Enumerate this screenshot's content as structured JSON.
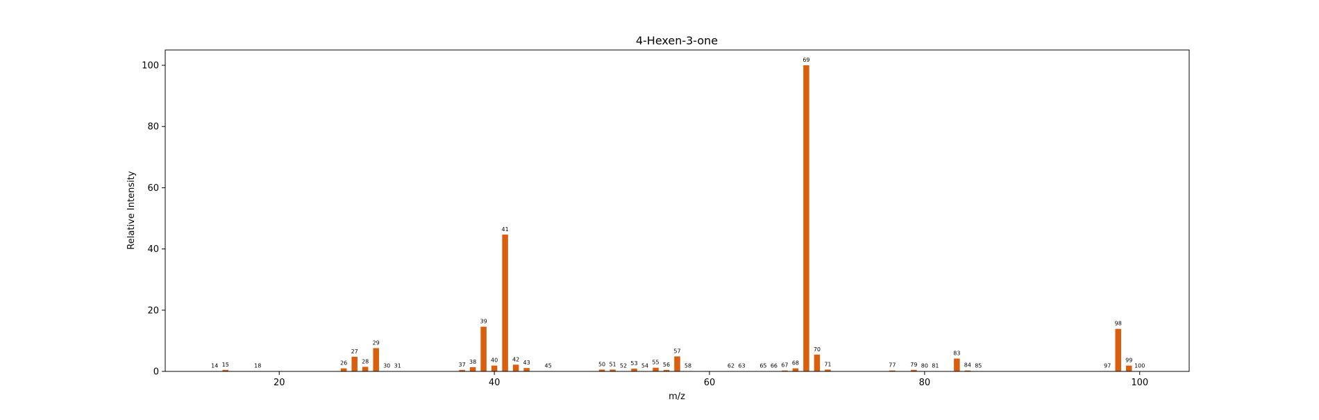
{
  "chart_data": {
    "type": "bar",
    "title": "4-Hexen-3-one",
    "xlabel": "m/z",
    "ylabel": "Relative Intensity",
    "xlim": [
      9.4,
      104.6
    ],
    "ylim": [
      0,
      105
    ],
    "xticks": [
      20,
      40,
      60,
      80,
      100
    ],
    "yticks": [
      0,
      20,
      40,
      60,
      80,
      100
    ],
    "grid": false,
    "bar_color": "#d95f0e",
    "series": [
      {
        "x": [
          14,
          15,
          18,
          26,
          27,
          28,
          29,
          30,
          31,
          37,
          38,
          39,
          40,
          41,
          42,
          43,
          45,
          50,
          51,
          52,
          53,
          54,
          55,
          56,
          57,
          58,
          62,
          63,
          65,
          66,
          67,
          68,
          69,
          70,
          71,
          77,
          79,
          80,
          81,
          83,
          84,
          85,
          97,
          98,
          99,
          100
        ],
        "values": [
          0.1,
          0.5,
          0.1,
          1.0,
          4.8,
          1.5,
          7.6,
          0.1,
          0.1,
          0.5,
          1.4,
          14.6,
          1.9,
          44.7,
          2.2,
          1.1,
          0.1,
          0.6,
          0.6,
          0.1,
          0.9,
          0.1,
          1.2,
          0.5,
          4.9,
          0.1,
          0.1,
          0.1,
          0.1,
          0.1,
          0.3,
          1.0,
          100.0,
          5.5,
          0.6,
          0.3,
          0.5,
          0.1,
          0.1,
          4.2,
          0.3,
          0.1,
          0.1,
          13.9,
          1.9,
          0.1
        ],
        "labels": [
          "14",
          "15",
          "18",
          "26",
          "27",
          "28",
          "29",
          "30",
          "31",
          "37",
          "38",
          "39",
          "40",
          "41",
          "42",
          "43",
          "45",
          "50",
          "51",
          "52",
          "53",
          "54",
          "55",
          "56",
          "57",
          "58",
          "62",
          "63",
          "65",
          "66",
          "67",
          "68",
          "69",
          "70",
          "71",
          "77",
          "79",
          "80",
          "81",
          "83",
          "84",
          "85",
          "97",
          "98",
          "99",
          "100"
        ]
      }
    ]
  }
}
